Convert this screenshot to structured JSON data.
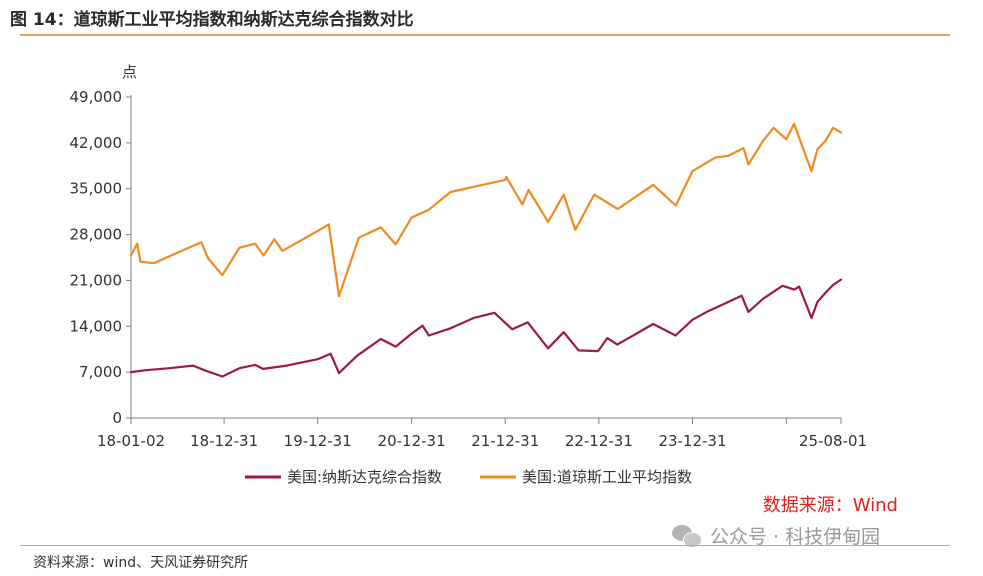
{
  "header": {
    "title": "图 14：道琼斯工业平均指数和纳斯达克综合指数对比"
  },
  "footer": {
    "source": "资料来源：wind、天风证券研究所"
  },
  "watermark": {
    "text": "公众号 · 科技伊甸园",
    "icon": "wechat-icon"
  },
  "colors": {
    "nasdaq": "#9b1b41",
    "dow": "#f08a22",
    "axis": "#808080",
    "source_label": "#e02020"
  },
  "chart_data": {
    "type": "line",
    "ylabel": "点",
    "ylim": [
      0,
      49000
    ],
    "yticks": [
      0,
      7000,
      14000,
      21000,
      28000,
      35000,
      42000,
      49000
    ],
    "ytick_labels": [
      "0",
      "7,000",
      "14,000",
      "21,000",
      "28,000",
      "35,000",
      "42,000",
      "49,000"
    ],
    "x_ticks": [
      "18-01-02",
      "18-12-31",
      "19-12-31",
      "20-12-31",
      "21-12-31",
      "22-12-31",
      "23-12-31",
      "",
      "25-08-01"
    ],
    "source_label": "数据来源：Wind",
    "legend_position": "bottom",
    "series": [
      {
        "name": "美国:纳斯达克综合指数",
        "color": "#9b1b41",
        "x": [
          "2018-01-02",
          "2018-03-01",
          "2018-06-01",
          "2018-09-01",
          "2018-10-15",
          "2018-12-24",
          "2019-03-01",
          "2019-05-01",
          "2019-06-01",
          "2019-09-01",
          "2019-12-31",
          "2020-02-19",
          "2020-03-23",
          "2020-06-01",
          "2020-09-02",
          "2020-10-30",
          "2020-12-31",
          "2021-02-12",
          "2021-03-08",
          "2021-06-01",
          "2021-09-01",
          "2021-11-19",
          "2022-01-27",
          "2022-03-29",
          "2022-06-16",
          "2022-08-16",
          "2022-10-13",
          "2022-12-28",
          "2023-02-02",
          "2023-03-13",
          "2023-07-31",
          "2023-10-26",
          "2023-12-31",
          "2024-03-01",
          "2024-07-10",
          "2024-08-05",
          "2024-10-01",
          "2024-12-16",
          "2025-01-31",
          "2025-02-19",
          "2025-04-08",
          "2025-05-01",
          "2025-06-01",
          "2025-07-01",
          "2025-08-01"
        ],
        "values": [
          7006,
          7300,
          7600,
          8000,
          7300,
          6333,
          7600,
          8100,
          7500,
          8000,
          8973,
          9817,
          6861,
          9500,
          12056,
          10900,
          12888,
          14095,
          12600,
          13700,
          15300,
          16057,
          13542,
          14600,
          10646,
          13100,
          10321,
          10213,
          12200,
          11200,
          14346,
          12595,
          15011,
          16300,
          18647,
          16200,
          18200,
          20174,
          19600,
          20056,
          15268,
          17700,
          19100,
          20300,
          21122
        ]
      },
      {
        "name": "美国:道琼斯工业平均指数",
        "color": "#f08a22",
        "x": [
          "2018-01-02",
          "2018-01-26",
          "2018-02-08",
          "2018-04-02",
          "2018-06-01",
          "2018-10-03",
          "2018-10-29",
          "2018-12-24",
          "2019-03-01",
          "2019-05-01",
          "2019-06-03",
          "2019-07-15",
          "2019-08-15",
          "2019-12-31",
          "2020-02-12",
          "2020-03-23",
          "2020-06-08",
          "2020-09-02",
          "2020-10-30",
          "2020-12-31",
          "2021-03-08",
          "2021-06-01",
          "2021-09-01",
          "2021-12-31",
          "2022-01-04",
          "2022-03-08",
          "2022-04-01",
          "2022-06-16",
          "2022-08-16",
          "2022-09-30",
          "2022-12-13",
          "2023-03-15",
          "2023-07-31",
          "2023-10-27",
          "2023-12-31",
          "2024-03-31",
          "2024-05-17",
          "2024-07-17",
          "2024-08-05",
          "2024-10-01",
          "2024-11-11",
          "2024-12-31",
          "2025-01-30",
          "2025-04-08",
          "2025-05-01",
          "2025-06-01",
          "2025-07-01",
          "2025-08-01"
        ],
        "values": [
          24824,
          26617,
          23860,
          23644,
          24700,
          26828,
          24400,
          21792,
          26000,
          26600,
          24800,
          27300,
          25500,
          28538,
          29551,
          18592,
          27500,
          29100,
          26501,
          30606,
          31800,
          34500,
          35300,
          36338,
          36800,
          32600,
          34800,
          29927,
          34100,
          28725,
          34100,
          31900,
          35600,
          32417,
          37689,
          39800,
          40000,
          41198,
          38700,
          42300,
          44293,
          42544,
          44900,
          37645,
          41000,
          42300,
          44300,
          43588
        ]
      }
    ]
  }
}
